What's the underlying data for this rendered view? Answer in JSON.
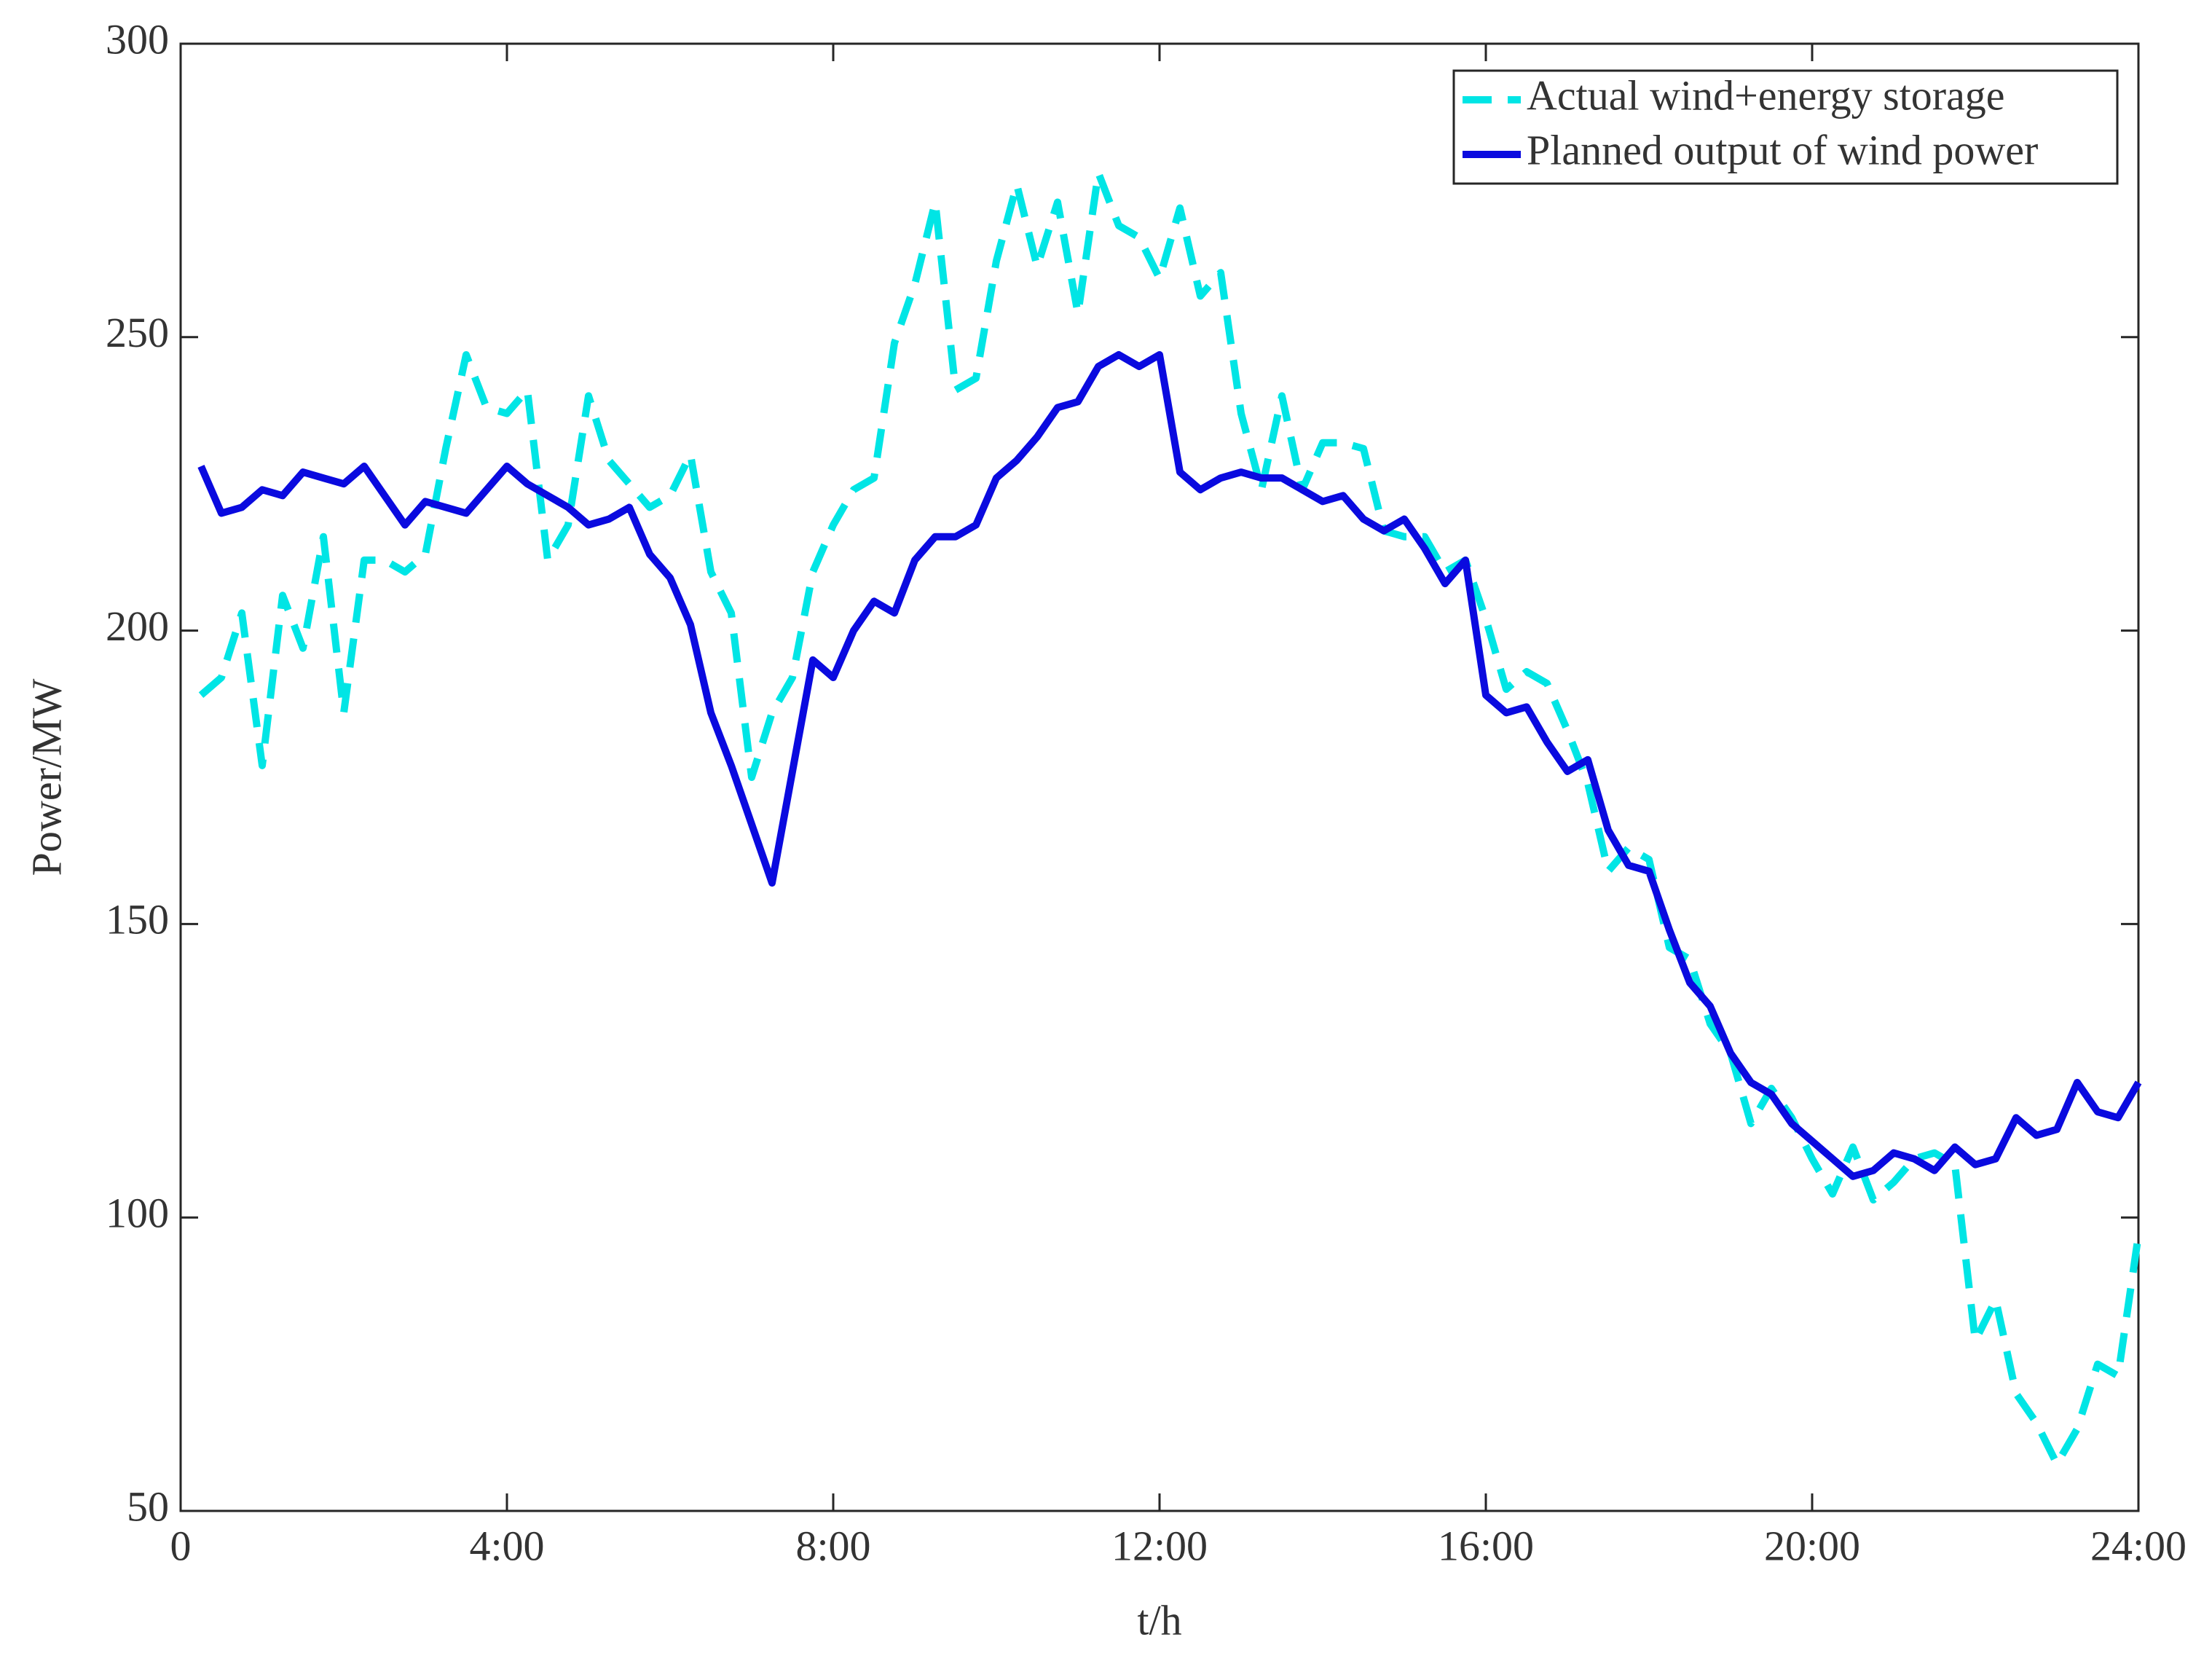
{
  "chart_data": {
    "type": "line",
    "xlabel": "t/h",
    "ylabel": "Power/MW",
    "x": [
      0.25,
      0.5,
      0.75,
      1,
      1.25,
      1.5,
      1.75,
      2,
      2.25,
      2.5,
      2.75,
      3,
      3.25,
      3.5,
      3.75,
      4,
      4.25,
      4.5,
      4.75,
      5,
      5.25,
      5.5,
      5.75,
      6,
      6.25,
      6.5,
      6.75,
      7,
      7.25,
      7.5,
      7.75,
      8,
      8.25,
      8.5,
      8.75,
      9,
      9.25,
      9.5,
      9.75,
      10,
      10.25,
      10.5,
      10.75,
      11,
      11.25,
      11.5,
      11.75,
      12,
      12.25,
      12.5,
      12.75,
      13,
      13.25,
      13.5,
      13.75,
      14,
      14.25,
      14.5,
      14.75,
      15,
      15.25,
      15.5,
      15.75,
      16,
      16.25,
      16.5,
      16.75,
      17,
      17.25,
      17.5,
      17.75,
      18,
      18.25,
      18.5,
      18.75,
      19,
      19.25,
      19.5,
      19.75,
      20,
      20.25,
      20.5,
      20.75,
      21,
      21.25,
      21.5,
      21.75,
      22,
      22.25,
      22.5,
      22.75,
      23,
      23.25,
      23.5,
      23.75,
      24
    ],
    "series": [
      {
        "name": "Actual wind+energy storage",
        "color": "#00e5e5",
        "dash": true,
        "values": [
          189,
          192,
          203,
          177,
          206,
          197,
          216,
          186,
          212,
          212,
          210,
          213,
          231,
          247,
          238,
          237,
          241,
          212,
          218,
          240,
          229,
          225,
          221,
          223,
          230,
          210,
          203,
          175,
          186,
          192,
          210,
          218,
          224,
          226,
          249,
          259,
          273,
          241,
          243,
          263,
          276,
          262,
          273,
          254,
          278,
          269,
          267,
          260,
          272,
          257,
          261,
          237,
          224,
          240,
          224,
          232,
          232,
          231,
          217,
          216,
          216,
          210,
          212,
          202,
          190,
          193,
          191,
          183,
          174,
          159,
          163,
          161,
          146,
          144,
          133,
          128,
          116,
          122,
          117,
          110,
          104,
          112,
          103,
          106,
          110,
          111,
          109,
          79,
          86,
          70,
          65,
          58,
          64,
          75,
          73,
          97
        ]
      },
      {
        "name": "Planned output of wind power",
        "color": "#0a0adf",
        "dash": false,
        "values": [
          228,
          220,
          221,
          224,
          223,
          227,
          226,
          225,
          228,
          223,
          218,
          222,
          221,
          220,
          224,
          228,
          225,
          223,
          221,
          218,
          219,
          221,
          213,
          209,
          201,
          186,
          177,
          167,
          157,
          176,
          195,
          192,
          200,
          205,
          203,
          212,
          216,
          216,
          218,
          226,
          229,
          233,
          238,
          239,
          245,
          247,
          245,
          247,
          227,
          224,
          226,
          227,
          226,
          226,
          224,
          222,
          223,
          219,
          217,
          219,
          214,
          208,
          212,
          189,
          186,
          187,
          181,
          176,
          178,
          166,
          160,
          159,
          149,
          140,
          136,
          128,
          123,
          121,
          116,
          113,
          110,
          107,
          108,
          111,
          110,
          108,
          112,
          109,
          110,
          117,
          114,
          115,
          123,
          118,
          117,
          123
        ]
      }
    ],
    "xlim": [
      0,
      24
    ],
    "ylim": [
      50,
      300
    ],
    "xticks": [
      0,
      {
        "value": 4,
        "label": "4:00"
      },
      {
        "value": 8,
        "label": "8:00"
      },
      {
        "value": 12,
        "label": "12:00"
      },
      {
        "value": 16,
        "label": "16:00"
      },
      {
        "value": 20,
        "label": "20:00"
      },
      {
        "value": 24,
        "label": "24:00"
      }
    ],
    "yticks": [
      50,
      100,
      150,
      200,
      250,
      300
    ],
    "grid": false,
    "legend": "top-right"
  }
}
